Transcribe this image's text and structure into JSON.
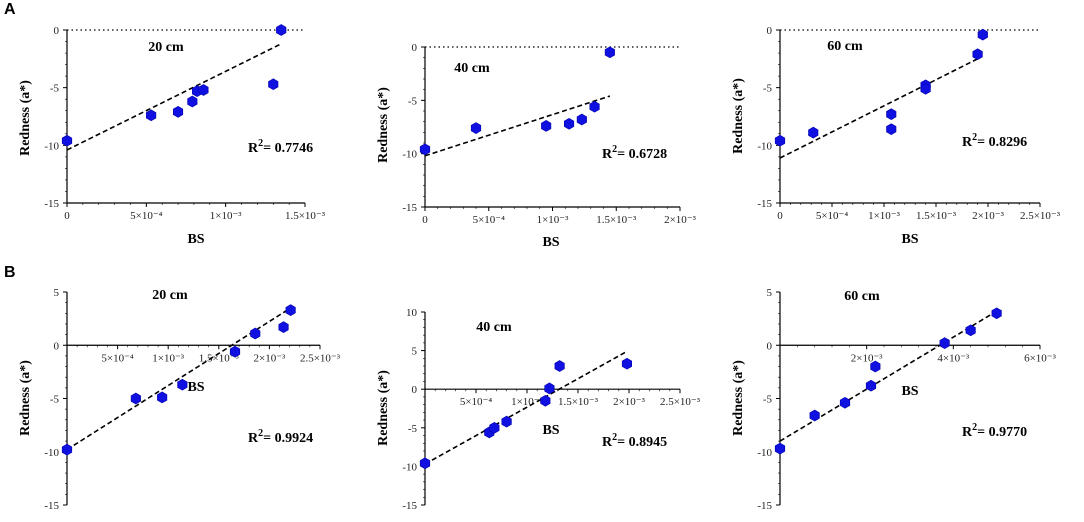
{
  "panel_labels": [
    "A",
    "B"
  ],
  "chart_data": [
    {
      "type": "scatter",
      "row": "A",
      "depth_label": "20 cm",
      "r2": "0.7746",
      "xlabel": "BS",
      "ylabel": "Redness (a*)",
      "xlim": [
        0,
        0.0015
      ],
      "ylim": [
        -15,
        0
      ],
      "x_ticks": [
        0,
        0.0005,
        0.001,
        0.0015
      ],
      "x_tick_labels": [
        "0",
        "5×10⁻⁴",
        "1×10⁻³",
        "1.5×10⁻³"
      ],
      "y_ticks": [
        -15,
        -10,
        -5,
        0
      ],
      "y_tick_labels": [
        "-15",
        "-10",
        "-5",
        "0"
      ],
      "points": [
        [
          0,
          -9.6
        ],
        [
          0.00053,
          -7.4
        ],
        [
          0.0007,
          -7.1
        ],
        [
          0.00079,
          -6.2
        ],
        [
          0.00082,
          -5.3
        ],
        [
          0.00086,
          -5.2
        ],
        [
          0.0013,
          -4.7
        ],
        [
          0.00135,
          0
        ]
      ],
      "fit": [
        [
          0,
          -10.4
        ],
        [
          0.00135,
          -1.2
        ]
      ],
      "zero_line": true
    },
    {
      "type": "scatter",
      "row": "A",
      "depth_label": "40 cm",
      "r2": "0.6728",
      "xlabel": "BS",
      "ylabel": "Redness (a*)",
      "xlim": [
        0,
        0.002
      ],
      "ylim": [
        -15,
        0
      ],
      "x_ticks": [
        0,
        0.0005,
        0.001,
        0.0015,
        0.002
      ],
      "x_tick_labels": [
        "0",
        "5×10⁻⁴",
        "1×10⁻³",
        "1.5×10⁻³",
        "2×10⁻³"
      ],
      "y_ticks": [
        -15,
        -10,
        -5,
        0
      ],
      "y_tick_labels": [
        "-15",
        "-10",
        "-5",
        "0"
      ],
      "points": [
        [
          0,
          -9.6
        ],
        [
          0.0004,
          -7.6
        ],
        [
          0.00095,
          -7.4
        ],
        [
          0.00113,
          -7.2
        ],
        [
          0.00123,
          -6.8
        ],
        [
          0.00133,
          -5.6
        ],
        [
          0.00145,
          -0.5
        ]
      ],
      "fit": [
        [
          0,
          -10.2
        ],
        [
          0.00145,
          -4.6
        ]
      ],
      "zero_line": true
    },
    {
      "type": "scatter",
      "row": "A",
      "depth_label": "60 cm",
      "r2": "0.8296",
      "xlabel": "BS",
      "ylabel": "Redness (a*)",
      "xlim": [
        0,
        0.0025
      ],
      "ylim": [
        -15,
        0
      ],
      "x_ticks": [
        0,
        0.0005,
        0.001,
        0.0015,
        0.002,
        0.0025
      ],
      "x_tick_labels": [
        "0",
        "5×10⁻⁴",
        "1×10⁻³",
        "1.5×10⁻³",
        "2×10⁻³",
        "2.5×10⁻³"
      ],
      "y_ticks": [
        -15,
        -10,
        -5,
        0
      ],
      "y_tick_labels": [
        "-15",
        "-10",
        "-5",
        "0"
      ],
      "points": [
        [
          0,
          -9.6
        ],
        [
          0.00032,
          -8.9
        ],
        [
          0.00107,
          -7.3
        ],
        [
          0.00107,
          -8.6
        ],
        [
          0.0014,
          -4.8
        ],
        [
          0.0014,
          -5.1
        ],
        [
          0.0019,
          -2.1
        ],
        [
          0.00195,
          -0.4
        ]
      ],
      "fit": [
        [
          0,
          -11.1
        ],
        [
          0.0019,
          -2.5
        ]
      ],
      "zero_line": true
    },
    {
      "type": "scatter",
      "row": "B",
      "depth_label": "20 cm",
      "r2": "0.9924",
      "xlabel": "BS",
      "ylabel": "Redness (a*)",
      "xlim": [
        0,
        0.0025
      ],
      "ylim": [
        -15,
        5
      ],
      "x_ticks": [
        0.0005,
        0.001,
        0.0015,
        0.002,
        0.0025
      ],
      "x_tick_labels": [
        "5×10⁻⁴",
        "1×10⁻³",
        "1.5×10⁻³",
        "2×10⁻³",
        "2.5×10⁻³"
      ],
      "y_ticks": [
        -15,
        -10,
        -5,
        0,
        5
      ],
      "y_tick_labels": [
        "-15",
        "-10",
        "-5",
        "0",
        "5"
      ],
      "points": [
        [
          0,
          -9.8
        ],
        [
          0.00068,
          -5.0
        ],
        [
          0.00094,
          -4.9
        ],
        [
          0.00114,
          -3.7
        ],
        [
          0.00166,
          -0.6
        ],
        [
          0.00186,
          1.1
        ],
        [
          0.00214,
          1.7
        ],
        [
          0.00221,
          3.3
        ]
      ],
      "fit": [
        [
          0,
          -9.8
        ],
        [
          0.00221,
          3.5
        ]
      ],
      "zero_line": false
    },
    {
      "type": "scatter",
      "row": "B",
      "depth_label": "40 cm",
      "r2": "0.8945",
      "xlabel": "BS",
      "ylabel": "Redness (a*)",
      "xlim": [
        0,
        0.0025
      ],
      "ylim": [
        -15,
        10
      ],
      "x_ticks": [
        0.0005,
        0.001,
        0.0015,
        0.002,
        0.0025
      ],
      "x_tick_labels": [
        "5×10⁻⁴",
        "1×10⁻³",
        "1.5×10⁻³",
        "2×10⁻³",
        "2.5×10⁻³"
      ],
      "y_ticks": [
        -15,
        -10,
        -5,
        0,
        5,
        10
      ],
      "y_tick_labels": [
        "-15",
        "-10",
        "-5",
        "0",
        "5",
        "10"
      ],
      "points": [
        [
          0,
          -9.6
        ],
        [
          0.00063,
          -5.6
        ],
        [
          0.00068,
          -5.0
        ],
        [
          0.0008,
          -4.2
        ],
        [
          0.00118,
          -1.5
        ],
        [
          0.00122,
          0.1
        ],
        [
          0.00132,
          3.0
        ],
        [
          0.00198,
          3.3
        ]
      ],
      "fit": [
        [
          0,
          -9.7
        ],
        [
          0.00198,
          4.9
        ]
      ],
      "zero_line": false
    },
    {
      "type": "scatter",
      "row": "B",
      "depth_label": "60 cm",
      "r2": "0.9770",
      "xlabel": "BS",
      "ylabel": "Redness (a*)",
      "xlim": [
        0,
        0.006
      ],
      "ylim": [
        -15,
        5
      ],
      "x_ticks": [
        0.002,
        0.004,
        0.006
      ],
      "x_tick_labels": [
        "2×10⁻³",
        "4×10⁻³",
        "6×10⁻³"
      ],
      "y_ticks": [
        -15,
        -10,
        -5,
        0,
        5
      ],
      "y_tick_labels": [
        "-15",
        "-10",
        "-5",
        "0",
        "5"
      ],
      "points": [
        [
          0,
          -9.7
        ],
        [
          0.0008,
          -6.6
        ],
        [
          0.0015,
          -5.4
        ],
        [
          0.0021,
          -3.8
        ],
        [
          0.0022,
          -2.0
        ],
        [
          0.0038,
          0.2
        ],
        [
          0.0044,
          1.4
        ],
        [
          0.005,
          3.0
        ]
      ],
      "fit": [
        [
          0,
          -9.0
        ],
        [
          0.005,
          3.2
        ]
      ],
      "zero_line": false
    }
  ]
}
